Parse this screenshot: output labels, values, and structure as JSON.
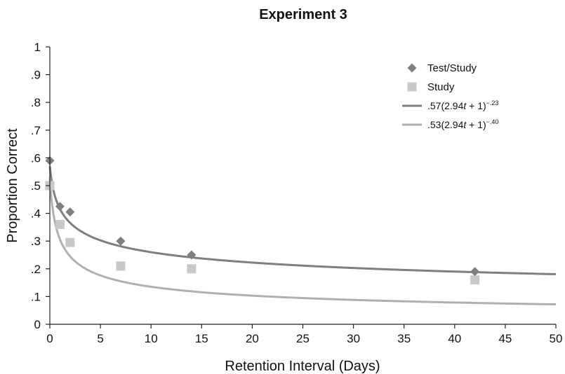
{
  "chart_data": {
    "type": "scatter",
    "title": "Experiment 3",
    "xlabel": "Retention Interval (Days)",
    "ylabel": "Proportion Correct",
    "xlim": [
      0,
      50
    ],
    "ylim": [
      0,
      1
    ],
    "x_ticks": [
      "0",
      "5",
      "10",
      "15",
      "20",
      "25",
      "30",
      "35",
      "40",
      "45",
      "50"
    ],
    "y_ticks": [
      "0",
      ".1",
      ".2",
      ".3",
      ".4",
      ".5",
      ".6",
      ".7",
      ".8",
      ".9",
      "1"
    ],
    "grid": false,
    "legend_position": "top-right",
    "series": [
      {
        "name": "Test/Study",
        "marker": "diamond",
        "color": "#7f7f7f",
        "x": [
          0,
          1,
          2,
          7,
          14,
          42
        ],
        "y": [
          0.59,
          0.425,
          0.405,
          0.3,
          0.25,
          0.19
        ]
      },
      {
        "name": "Study",
        "marker": "square",
        "color": "#c8c8c8",
        "x": [
          0,
          1,
          2,
          7,
          14,
          42
        ],
        "y": [
          0.5,
          0.36,
          0.295,
          0.21,
          0.2,
          0.16
        ]
      }
    ],
    "fits": [
      {
        "label_prefix": ".57(2.94",
        "label_var": "t",
        "label_suffix": " + 1)",
        "label_exp": "−.23",
        "color": "#7f7f7f",
        "a": 0.57,
        "b": 2.94,
        "c": -0.23
      },
      {
        "label_prefix": ".53(2.94",
        "label_var": "t",
        "label_suffix": " + 1)",
        "label_exp": "−.40",
        "color": "#b0b0b0",
        "a": 0.53,
        "b": 2.94,
        "c": -0.4
      }
    ]
  }
}
